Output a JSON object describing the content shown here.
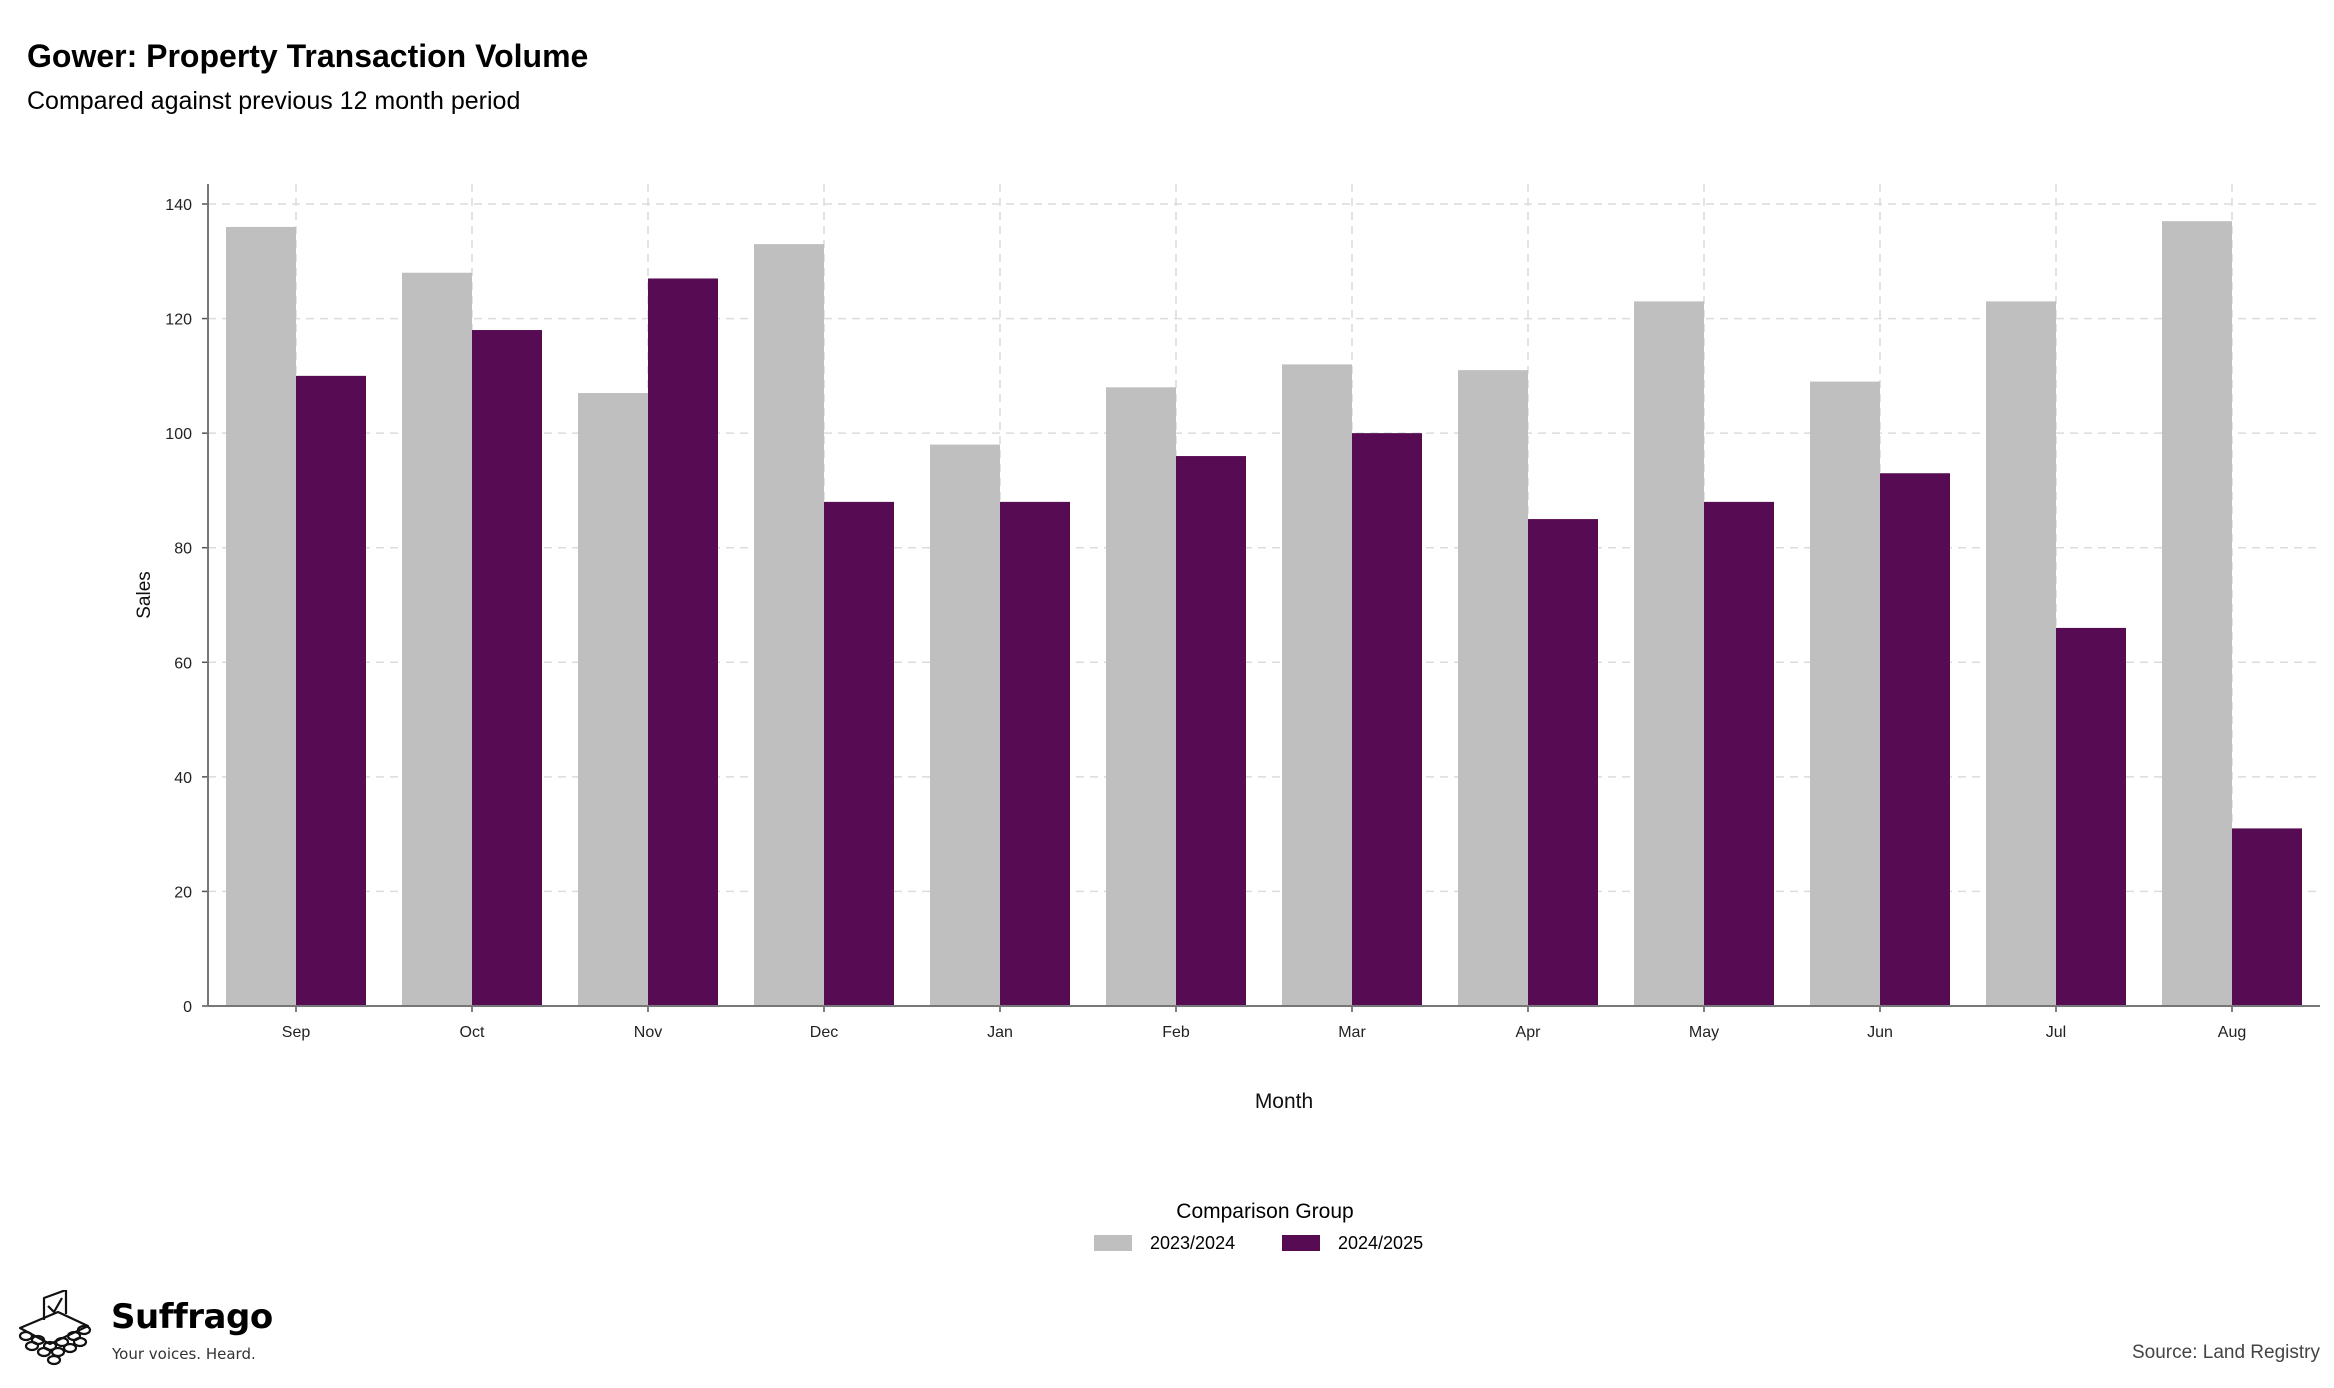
{
  "header": {
    "title": "Gower: Property Transaction Volume",
    "subtitle": "Compared against previous 12 month period"
  },
  "chart_data": {
    "type": "bar",
    "title": "Gower: Property Transaction Volume",
    "subtitle": "Compared against previous 12 month period",
    "xlabel": "Month",
    "ylabel": "Sales",
    "categories": [
      "Sep",
      "Oct",
      "Nov",
      "Dec",
      "Jan",
      "Feb",
      "Mar",
      "Apr",
      "May",
      "Jun",
      "Jul",
      "Aug"
    ],
    "series": [
      {
        "name": "2023/2024",
        "color": "#bfbfbf",
        "values": [
          136,
          128,
          107,
          133,
          98,
          108,
          112,
          111,
          123,
          109,
          123,
          137
        ]
      },
      {
        "name": "2024/2025",
        "color": "#560b52",
        "values": [
          110,
          118,
          127,
          88,
          88,
          96,
          100,
          85,
          88,
          93,
          66,
          31
        ]
      }
    ],
    "ylim": [
      0,
      140
    ],
    "yticks": [
      0,
      20,
      40,
      60,
      80,
      100,
      120,
      140
    ],
    "grid": true,
    "legend": {
      "title": "Comparison Group",
      "placement": "bottom-center"
    }
  },
  "footer": {
    "brand": "Suffrago",
    "tagline": "Your voices. Heard.",
    "source": "Source: Land Registry",
    "logo_icon": "ballot-box-icon"
  }
}
